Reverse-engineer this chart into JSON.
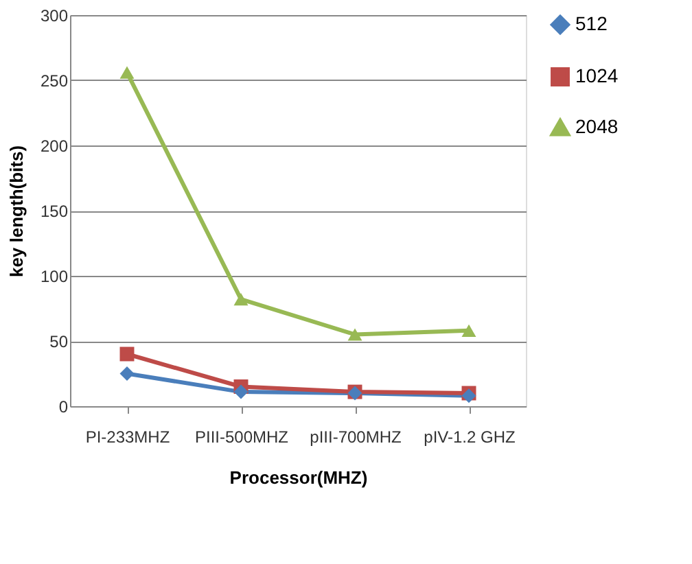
{
  "chart_data": {
    "type": "line",
    "xlabel": "Processor(MHZ)",
    "ylabel": "key length(bits)",
    "categories": [
      "PI-233MHZ",
      "PIII-500MHZ",
      "pIII-700MHZ",
      "pIV-1.2 GHZ"
    ],
    "series": [
      {
        "name": "512",
        "color": "#4a7ebb",
        "marker": "diamond",
        "values": [
          25,
          11,
          10,
          8
        ]
      },
      {
        "name": "1024",
        "color": "#be4b48",
        "marker": "square",
        "values": [
          40,
          15,
          11,
          10
        ]
      },
      {
        "name": "2048",
        "color": "#98b954",
        "marker": "triangle",
        "values": [
          256,
          82,
          55,
          58
        ]
      }
    ],
    "ylim": [
      0,
      300
    ],
    "yticks": [
      0,
      50,
      100,
      150,
      200,
      250,
      300
    ],
    "grid": "y",
    "legend": "right",
    "line_style": "solid"
  }
}
